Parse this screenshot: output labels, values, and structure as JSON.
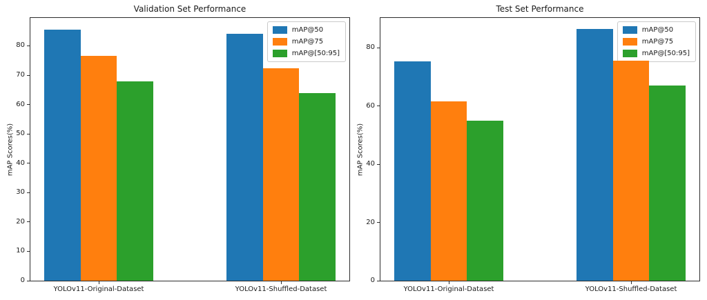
{
  "figure": {
    "background": "#ffffff",
    "text_color": "#262626"
  },
  "chart_data": [
    {
      "type": "bar",
      "title": "Validation Set Performance",
      "ylabel": "mAP Scores(%)",
      "xlabel": "",
      "categories": [
        "YOLOv11-Original-Dataset",
        "YOLOv11-Shuffled-Dataset"
      ],
      "series": [
        {
          "name": "mAP@50",
          "color": "#1f77b4",
          "values": [
            85.5,
            84.0
          ]
        },
        {
          "name": "mAP@75",
          "color": "#ff7f0e",
          "values": [
            76.6,
            72.4
          ]
        },
        {
          "name": "mAP@[50:95]",
          "color": "#2ca02c",
          "values": [
            68.0,
            64.0
          ]
        }
      ],
      "ylim": [
        0,
        89.5
      ],
      "yticks": [
        0,
        10,
        20,
        30,
        40,
        50,
        60,
        70,
        80
      ],
      "bar_width_units": 0.2,
      "grid": false,
      "legend_position": "upper right"
    },
    {
      "type": "bar",
      "title": "Test Set Performance",
      "ylabel": "mAP Scores(%)",
      "xlabel": "",
      "categories": [
        "YOLOv11-Original-Dataset",
        "YOLOv11-Shuffled-Dataset"
      ],
      "series": [
        {
          "name": "mAP@50",
          "color": "#1f77b4",
          "values": [
            75.4,
            86.5
          ]
        },
        {
          "name": "mAP@75",
          "color": "#ff7f0e",
          "values": [
            61.7,
            75.7
          ]
        },
        {
          "name": "mAP@[50:95]",
          "color": "#2ca02c",
          "values": [
            55.0,
            67.0
          ]
        }
      ],
      "ylim": [
        0,
        90.3
      ],
      "yticks": [
        0,
        20,
        40,
        60,
        80
      ],
      "bar_width_units": 0.2,
      "grid": false,
      "legend_position": "upper right"
    }
  ]
}
